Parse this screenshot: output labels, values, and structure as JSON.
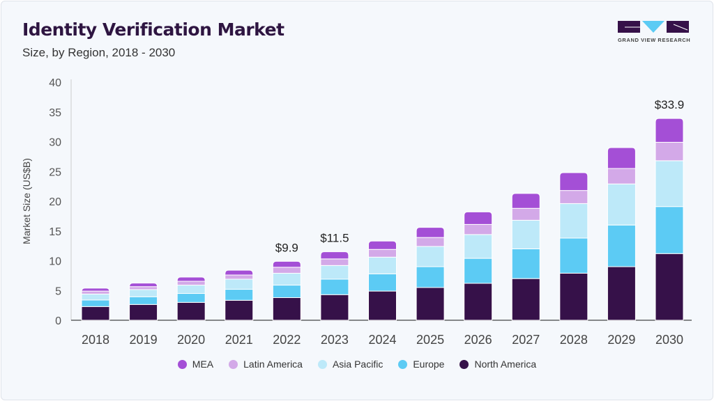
{
  "header": {
    "title": "Identity Verification Market",
    "subtitle": "Size, by Region, 2018 - 2030",
    "logo_text": "GRAND VIEW RESEARCH"
  },
  "chart_data": {
    "type": "bar",
    "stacked": true,
    "ylabel": "Market Size (US$B)",
    "ylim": [
      0,
      40
    ],
    "yticks": [
      "0",
      "5",
      "10",
      "15",
      "20",
      "25",
      "30",
      "35",
      "40"
    ],
    "grid": false,
    "legend_position": "bottom",
    "categories": [
      "2018",
      "2019",
      "2020",
      "2021",
      "2022",
      "2023",
      "2024",
      "2025",
      "2026",
      "2027",
      "2028",
      "2029",
      "2030"
    ],
    "series": [
      {
        "name": "North America",
        "color": "#361149",
        "values": [
          2.3,
          2.65,
          3.0,
          3.35,
          3.8,
          4.3,
          4.9,
          5.5,
          6.2,
          7.0,
          7.9,
          9.0,
          11.2
        ]
      },
      {
        "name": "Europe",
        "color": "#5ccbf4",
        "values": [
          1.1,
          1.3,
          1.5,
          1.85,
          2.1,
          2.6,
          2.9,
          3.5,
          4.2,
          5.0,
          5.9,
          7.0,
          7.9
        ]
      },
      {
        "name": "Asia Pacific",
        "color": "#bde9f9",
        "values": [
          1.0,
          1.2,
          1.4,
          1.7,
          2.0,
          2.3,
          2.8,
          3.4,
          4.0,
          4.8,
          5.8,
          6.9,
          7.7
        ]
      },
      {
        "name": "Latin America",
        "color": "#d3a9e8",
        "values": [
          0.5,
          0.5,
          0.65,
          0.7,
          1.0,
          1.1,
          1.3,
          1.5,
          1.7,
          2.0,
          2.2,
          2.6,
          3.1
        ]
      },
      {
        "name": "MEA",
        "color": "#a44fd6",
        "values": [
          0.5,
          0.6,
          0.7,
          0.8,
          1.0,
          1.2,
          1.4,
          1.7,
          2.1,
          2.5,
          3.0,
          3.5,
          4.0
        ]
      }
    ],
    "legend_order": [
      "MEA",
      "Latin America",
      "Asia Pacific",
      "Europe",
      "North America"
    ],
    "annotations": [
      {
        "category": "2022",
        "text": "$9.9"
      },
      {
        "category": "2023",
        "text": "$11.5"
      },
      {
        "category": "2030",
        "text": "$33.9"
      }
    ]
  }
}
